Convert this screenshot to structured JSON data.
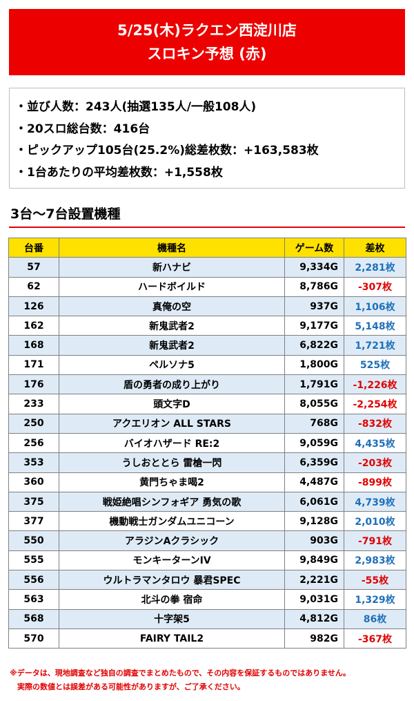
{
  "header": {
    "line1": "5/25(木)ラクエン西淀川店",
    "line2": "スロキン予想 (赤)"
  },
  "summary": [
    "・並び人数：243人(抽選135人/一般108人)",
    "・20スロ総台数：416台",
    "・ピックアップ105台(25.2%)総差枚数：+163,583枚",
    "・1台あたりの平均差枚数：+1,558枚"
  ],
  "section_title": "3台～7台設置機種",
  "table": {
    "headers": [
      "台番",
      "機種名",
      "ゲーム数",
      "差枚"
    ],
    "rows": [
      {
        "no": "57",
        "name": "新ハナビ",
        "games": "9,334G",
        "diff": "2,281枚",
        "sign": "pos"
      },
      {
        "no": "62",
        "name": "ハードボイルド",
        "games": "8,786G",
        "diff": "-307枚",
        "sign": "neg"
      },
      {
        "no": "126",
        "name": "真俺の空",
        "games": "937G",
        "diff": "1,106枚",
        "sign": "pos"
      },
      {
        "no": "162",
        "name": "新鬼武者2",
        "games": "9,177G",
        "diff": "5,148枚",
        "sign": "pos"
      },
      {
        "no": "168",
        "name": "新鬼武者2",
        "games": "6,822G",
        "diff": "1,721枚",
        "sign": "pos"
      },
      {
        "no": "171",
        "name": "ペルソナ5",
        "games": "1,800G",
        "diff": "525枚",
        "sign": "pos"
      },
      {
        "no": "176",
        "name": "盾の勇者の成り上がり",
        "games": "1,791G",
        "diff": "-1,226枚",
        "sign": "neg"
      },
      {
        "no": "233",
        "name": "頭文字D",
        "games": "8,055G",
        "diff": "-2,254枚",
        "sign": "neg"
      },
      {
        "no": "250",
        "name": "アクエリオン ALL STARS",
        "games": "768G",
        "diff": "-832枚",
        "sign": "neg"
      },
      {
        "no": "256",
        "name": "バイオハザード RE:2",
        "games": "9,059G",
        "diff": "4,435枚",
        "sign": "pos"
      },
      {
        "no": "353",
        "name": "うしおととら 雷槍一閃",
        "games": "6,359G",
        "diff": "-203枚",
        "sign": "neg"
      },
      {
        "no": "360",
        "name": "黄門ちゃま喝2",
        "games": "4,487G",
        "diff": "-899枚",
        "sign": "neg"
      },
      {
        "no": "375",
        "name": "戦姫絶唱シンフォギア 勇気の歌",
        "games": "6,061G",
        "diff": "4,739枚",
        "sign": "pos"
      },
      {
        "no": "377",
        "name": "機動戦士ガンダムユニコーン",
        "games": "9,128G",
        "diff": "2,010枚",
        "sign": "pos"
      },
      {
        "no": "550",
        "name": "アラジンAクラシック",
        "games": "903G",
        "diff": "-791枚",
        "sign": "neg"
      },
      {
        "no": "555",
        "name": "モンキーターンIV",
        "games": "9,849G",
        "diff": "2,983枚",
        "sign": "pos"
      },
      {
        "no": "556",
        "name": "ウルトラマンタロウ 暴君SPEC",
        "games": "2,221G",
        "diff": "-55枚",
        "sign": "neg"
      },
      {
        "no": "563",
        "name": "北斗の拳 宿命",
        "games": "9,031G",
        "diff": "1,329枚",
        "sign": "pos"
      },
      {
        "no": "568",
        "name": "十字架5",
        "games": "4,812G",
        "diff": "86枚",
        "sign": "pos"
      },
      {
        "no": "570",
        "name": "FAIRY TAIL2",
        "games": "982G",
        "diff": "-367枚",
        "sign": "neg"
      }
    ]
  },
  "footer": {
    "line1": "※データは、現地調査など独自の調査でまとめたもので、その内容を保証するものではありません。",
    "line2": "実際の数値とは誤差がある可能性がありますが、ご了承ください。"
  },
  "colors": {
    "header_bg": "#ec0000",
    "table_header_bg": "#ffe100",
    "row_stripe": "#deebf7",
    "positive": "#1e6fb9",
    "negative": "#e00000"
  }
}
